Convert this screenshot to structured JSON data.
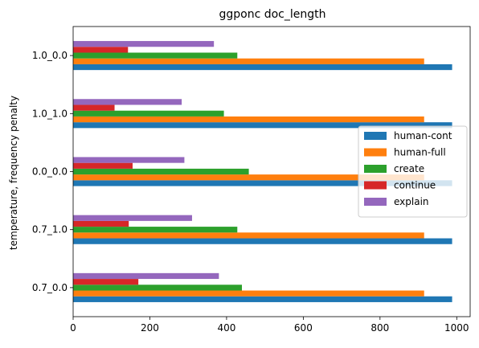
{
  "chart_data": {
    "type": "bar",
    "orientation": "horizontal",
    "title": "ggponc doc_length",
    "xlabel": "",
    "ylabel": "temperature, frequency penalty",
    "categories": [
      "0.7_0.0",
      "0.7_1.0",
      "0.0_0.0",
      "1.0_1.0",
      "1.0_0.0"
    ],
    "xlim": [
      0,
      1035
    ],
    "xticks": [
      0,
      200,
      400,
      600,
      800,
      1000
    ],
    "series": [
      {
        "name": "human-cont",
        "color": "#1f77b4",
        "values": [
          988,
          988,
          988,
          988,
          988
        ]
      },
      {
        "name": "human-full",
        "color": "#ff7f0e",
        "values": [
          915,
          915,
          915,
          915,
          915
        ]
      },
      {
        "name": "create",
        "color": "#2ca02c",
        "values": [
          440,
          428,
          458,
          393,
          428
        ]
      },
      {
        "name": "continue",
        "color": "#d62728",
        "values": [
          170,
          145,
          155,
          108,
          143
        ]
      },
      {
        "name": "explain",
        "color": "#9467bd",
        "values": [
          380,
          310,
          290,
          283,
          367
        ]
      }
    ],
    "legend_position": "center-right",
    "grid": false
  }
}
